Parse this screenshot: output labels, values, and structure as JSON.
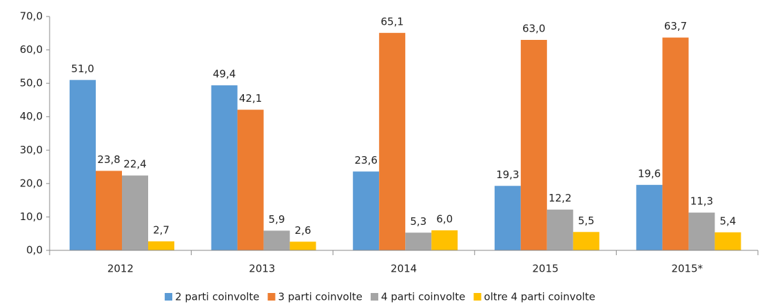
{
  "chart_data": {
    "type": "bar",
    "categories": [
      "2012",
      "2013",
      "2014",
      "2015",
      "2015*"
    ],
    "series": [
      {
        "name": "2 parti coinvolte",
        "color": "#5b9bd5",
        "values": [
          51.0,
          49.4,
          23.6,
          19.3,
          19.6
        ],
        "value_labels": [
          "51,0",
          "49,4",
          "23,6",
          "19,3",
          "19,6"
        ]
      },
      {
        "name": "3 parti coinvolte",
        "color": "#ed7d31",
        "values": [
          23.8,
          42.1,
          65.1,
          63.0,
          63.7
        ],
        "value_labels": [
          "23,8",
          "42,1",
          "65,1",
          "63,0",
          "63,7"
        ]
      },
      {
        "name": "4 parti coinvolte",
        "color": "#a5a5a5",
        "values": [
          22.4,
          5.9,
          5.3,
          12.2,
          11.3
        ],
        "value_labels": [
          "22,4",
          "5,9",
          "5,3",
          "12,2",
          "11,3"
        ]
      },
      {
        "name": "oltre 4 parti coinvolte",
        "color": "#ffc000",
        "values": [
          2.7,
          2.6,
          6.0,
          5.5,
          5.4
        ],
        "value_labels": [
          "2,7",
          "2,6",
          "6,0",
          "5,5",
          "5,4"
        ]
      }
    ],
    "ylim": [
      0,
      70
    ],
    "yticks": [
      {
        "value": 0,
        "label": "0,0"
      },
      {
        "value": 10,
        "label": "10,0"
      },
      {
        "value": 20,
        "label": "20,0"
      },
      {
        "value": 30,
        "label": "30,0"
      },
      {
        "value": 40,
        "label": "40,0"
      },
      {
        "value": 50,
        "label": "50,0"
      },
      {
        "value": 60,
        "label": "60,0"
      },
      {
        "value": 70,
        "label": "70,0"
      }
    ],
    "grid": false,
    "legend": "bottom"
  }
}
